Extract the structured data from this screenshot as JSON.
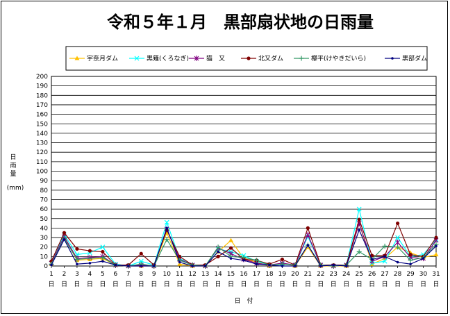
{
  "chart_data": {
    "type": "line",
    "title": "令和５年１月　黒部扇状地の日雨量",
    "ylabel": [
      "日",
      "雨",
      "量"
    ],
    "yunit": "(mm)",
    "xlabel": "日　付",
    "day_suffix": "日",
    "ylim": [
      0,
      200
    ],
    "ytick_step": 10,
    "grid": true,
    "legend_position": "top",
    "x": [
      1,
      2,
      3,
      4,
      5,
      6,
      7,
      8,
      9,
      10,
      11,
      12,
      13,
      14,
      15,
      16,
      17,
      18,
      19,
      20,
      21,
      22,
      23,
      24,
      25,
      26,
      27,
      28,
      29,
      30,
      31
    ],
    "series": [
      {
        "name": "宇奈月ダム",
        "color": "#FFC000",
        "marker": "triangle",
        "values": [
          2,
          30,
          6,
          7,
          8,
          1,
          0,
          0,
          0,
          35,
          2,
          0,
          0,
          15,
          27,
          8,
          4,
          0,
          3,
          0,
          20,
          0,
          0,
          0,
          45,
          2,
          8,
          20,
          14,
          9,
          12
        ]
      },
      {
        "name": "黒薙(くろなぎ)",
        "color": "#00FFFF",
        "marker": "x",
        "values": [
          3,
          33,
          12,
          14,
          20,
          2,
          0,
          5,
          1,
          46,
          8,
          1,
          0,
          18,
          15,
          11,
          5,
          1,
          2,
          1,
          31,
          1,
          0,
          1,
          60,
          3,
          5,
          30,
          10,
          12,
          28
        ]
      },
      {
        "name": "猫　又",
        "color": "#800080",
        "marker": "star",
        "values": [
          3,
          31,
          8,
          9,
          10,
          1,
          0,
          1,
          0,
          39,
          7,
          1,
          0,
          19,
          13,
          7,
          3,
          1,
          3,
          1,
          33,
          1,
          0,
          1,
          45,
          5,
          10,
          25,
          9,
          8,
          27
        ]
      },
      {
        "name": "北又ダム",
        "color": "#800000",
        "marker": "circle",
        "values": [
          5,
          35,
          18,
          16,
          15,
          1,
          1,
          13,
          1,
          38,
          10,
          1,
          1,
          10,
          19,
          7,
          6,
          2,
          7,
          1,
          40,
          1,
          1,
          1,
          49,
          11,
          11,
          45,
          12,
          10,
          30
        ]
      },
      {
        "name": "欅平(けやきだいら)",
        "color": "#339966",
        "marker": "plus",
        "values": [
          2,
          29,
          7,
          8,
          9,
          1,
          0,
          2,
          0,
          28,
          6,
          1,
          0,
          20,
          10,
          9,
          6,
          1,
          2,
          1,
          22,
          1,
          0,
          1,
          15,
          7,
          21,
          20,
          6,
          9,
          23
        ]
      },
      {
        "name": "黒部ダム",
        "color": "#000080",
        "marker": "dot",
        "values": [
          1,
          28,
          2,
          3,
          5,
          1,
          0,
          0,
          0,
          40,
          4,
          0,
          0,
          15,
          8,
          6,
          2,
          1,
          0,
          0,
          22,
          0,
          1,
          0,
          38,
          7,
          10,
          4,
          2,
          8,
          21
        ]
      }
    ]
  }
}
